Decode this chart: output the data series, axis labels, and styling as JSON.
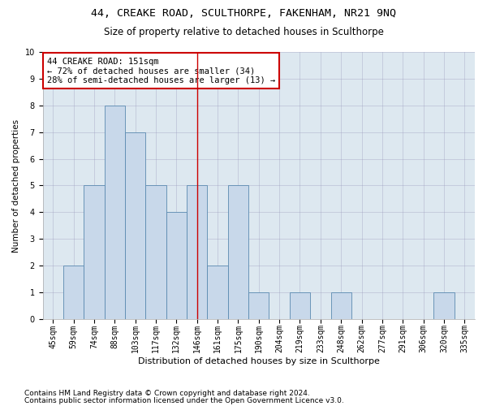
{
  "title1": "44, CREAKE ROAD, SCULTHORPE, FAKENHAM, NR21 9NQ",
  "title2": "Size of property relative to detached houses in Sculthorpe",
  "xlabel": "Distribution of detached houses by size in Sculthorpe",
  "ylabel": "Number of detached properties",
  "categories": [
    "45sqm",
    "59sqm",
    "74sqm",
    "88sqm",
    "103sqm",
    "117sqm",
    "132sqm",
    "146sqm",
    "161sqm",
    "175sqm",
    "190sqm",
    "204sqm",
    "219sqm",
    "233sqm",
    "248sqm",
    "262sqm",
    "277sqm",
    "291sqm",
    "306sqm",
    "320sqm",
    "335sqm"
  ],
  "values": [
    0,
    2,
    5,
    8,
    7,
    5,
    4,
    5,
    2,
    5,
    1,
    0,
    1,
    0,
    1,
    0,
    0,
    0,
    0,
    1,
    0
  ],
  "bar_color": "#c8d8ea",
  "bar_edge_color": "#5a8ab0",
  "vline_x": 7,
  "vline_color": "#cc0000",
  "annotation_text": "44 CREAKE ROAD: 151sqm\n← 72% of detached houses are smaller (34)\n28% of semi-detached houses are larger (13) →",
  "annotation_box_color": "#ffffff",
  "annotation_box_edge_color": "#cc0000",
  "footnote1": "Contains HM Land Registry data © Crown copyright and database right 2024.",
  "footnote2": "Contains public sector information licensed under the Open Government Licence v3.0.",
  "ylim": [
    0,
    10
  ],
  "yticks": [
    0,
    1,
    2,
    3,
    4,
    5,
    6,
    7,
    8,
    9,
    10
  ],
  "title1_fontsize": 9.5,
  "title2_fontsize": 8.5,
  "xlabel_fontsize": 8,
  "ylabel_fontsize": 7.5,
  "tick_fontsize": 7,
  "footnote_fontsize": 6.5,
  "annotation_fontsize": 7.5,
  "background_color": "#ffffff",
  "grid_color": "#9999bb",
  "grid_alpha": 0.5,
  "ax_bg_color": "#dde8f0"
}
